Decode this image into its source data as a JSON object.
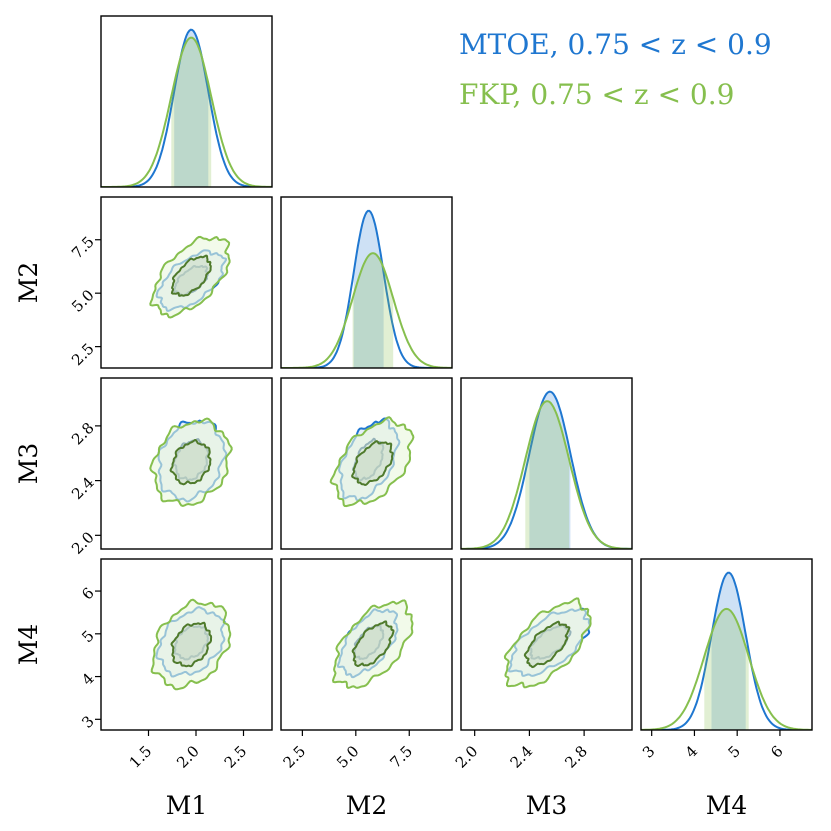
{
  "chart_data": {
    "type": "corner-plot",
    "parameters": [
      "M1",
      "M2",
      "M3",
      "M4"
    ],
    "ranges": {
      "M1": [
        1.0,
        2.8
      ],
      "M2": [
        1.5,
        9.5
      ],
      "M3": [
        1.9,
        3.15
      ],
      "M4": [
        2.75,
        6.75
      ]
    },
    "ticks": {
      "M1": [
        "1.5",
        "2.0",
        "2.5"
      ],
      "M2": [
        "2.5",
        "5.0",
        "7.5"
      ],
      "M3": [
        "2.0",
        "2.4",
        "2.8"
      ],
      "M4": [
        "3",
        "4",
        "5",
        "6"
      ]
    },
    "series": [
      {
        "name": "MTOE, 0.75 < z < 0.9",
        "color": "#1f77d0",
        "fill_color": "#cfe0f4",
        "mean": {
          "M1": 1.95,
          "M2": 5.6,
          "M3": 2.55,
          "M4": 4.8
        },
        "sigma": {
          "M1": 0.18,
          "M2": 0.7,
          "M3": 0.15,
          "M4": 0.4
        },
        "peak": {
          "M1": 1.0,
          "M2": 1.0,
          "M3": 1.0,
          "M4": 1.0
        }
      },
      {
        "name": "FKP, 0.75 < z < 0.9",
        "color": "#86bf4e",
        "fill_color": "#eaf6dc",
        "mean": {
          "M1": 1.95,
          "M2": 5.8,
          "M3": 2.53,
          "M4": 4.75
        },
        "sigma": {
          "M1": 0.21,
          "M2": 0.95,
          "M3": 0.16,
          "M4": 0.52
        },
        "peak": {
          "M1": 0.95,
          "M2": 0.73,
          "M3": 0.94,
          "M4": 0.77
        }
      }
    ],
    "correlation": {
      "M1-M2": 0.55,
      "M1-M3": 0.2,
      "M1-M4": 0.3,
      "M2-M3": 0.45,
      "M2-M4": 0.55,
      "M3-M4": 0.6
    },
    "contour_levels_sigma": [
      1,
      2
    ],
    "credible_interval_sigma": 1
  }
}
